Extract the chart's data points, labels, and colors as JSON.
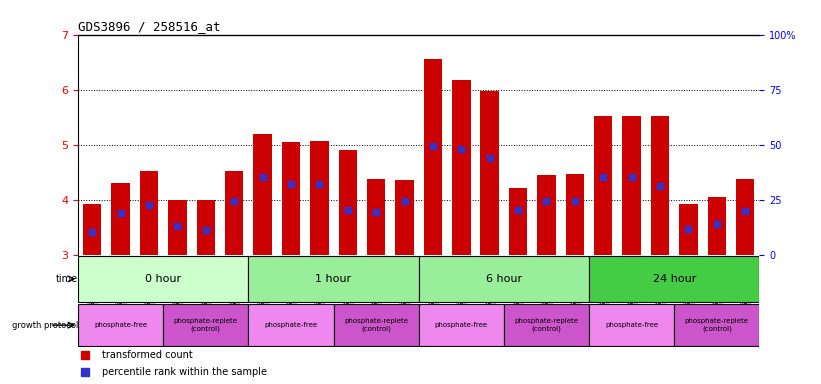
{
  "title": "GDS3896 / 258516_at",
  "samples": [
    "GSM618325",
    "GSM618333",
    "GSM618341",
    "GSM618324",
    "GSM618332",
    "GSM618340",
    "GSM618327",
    "GSM618335",
    "GSM618343",
    "GSM618326",
    "GSM618334",
    "GSM618342",
    "GSM618329",
    "GSM618337",
    "GSM618345",
    "GSM618328",
    "GSM618336",
    "GSM618344",
    "GSM618331",
    "GSM618339",
    "GSM618347",
    "GSM618330",
    "GSM618338",
    "GSM618346"
  ],
  "bar_values": [
    3.93,
    4.3,
    4.52,
    4.0,
    4.0,
    4.52,
    5.2,
    5.05,
    5.07,
    4.9,
    4.37,
    4.35,
    6.55,
    6.18,
    5.97,
    4.22,
    4.45,
    4.47,
    5.52,
    5.52,
    5.52,
    3.92,
    4.05,
    4.37
  ],
  "blue_marker_values": [
    3.42,
    3.75,
    3.9,
    3.52,
    3.45,
    3.97,
    4.42,
    4.28,
    4.28,
    3.82,
    3.77,
    3.97,
    4.97,
    4.92,
    4.75,
    3.82,
    3.97,
    3.97,
    4.42,
    4.42,
    4.25,
    3.47,
    3.55,
    3.8
  ],
  "ymin": 3,
  "ymax": 7,
  "yticks_left": [
    3,
    4,
    5,
    6,
    7
  ],
  "bar_color": "#CC0000",
  "marker_color": "#3333CC",
  "time_groups": [
    {
      "label": "0 hour",
      "start": 0,
      "end": 6,
      "color": "#ccffcc"
    },
    {
      "label": "1 hour",
      "start": 6,
      "end": 12,
      "color": "#99ee99"
    },
    {
      "label": "6 hour",
      "start": 12,
      "end": 18,
      "color": "#99ee99"
    },
    {
      "label": "24 hour",
      "start": 18,
      "end": 24,
      "color": "#44cc44"
    }
  ],
  "protocol_groups": [
    {
      "label": "phosphate-free",
      "start": 0,
      "end": 3,
      "color": "#ee88ee"
    },
    {
      "label": "phosphate-replete\n(control)",
      "start": 3,
      "end": 6,
      "color": "#cc55cc"
    },
    {
      "label": "phosphate-free",
      "start": 6,
      "end": 9,
      "color": "#ee88ee"
    },
    {
      "label": "phosphate-replete\n(control)",
      "start": 9,
      "end": 12,
      "color": "#cc55cc"
    },
    {
      "label": "phosphate-free",
      "start": 12,
      "end": 15,
      "color": "#ee88ee"
    },
    {
      "label": "phosphate-replete\n(control)",
      "start": 15,
      "end": 18,
      "color": "#cc55cc"
    },
    {
      "label": "phosphate-free",
      "start": 18,
      "end": 21,
      "color": "#ee88ee"
    },
    {
      "label": "phosphate-replete\n(control)",
      "start": 21,
      "end": 24,
      "color": "#cc55cc"
    }
  ],
  "xlabel_bg_color": "#cccccc",
  "xlabel_border_color": "#999999",
  "right_ytick_labels": [
    "0",
    "25",
    "50",
    "75",
    "100%"
  ],
  "right_ytick_positions": [
    3,
    4,
    5,
    6,
    7
  ]
}
